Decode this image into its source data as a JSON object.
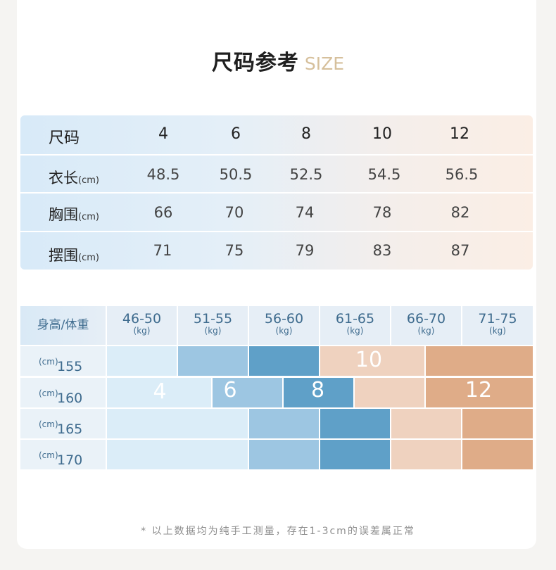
{
  "title": {
    "cn": "尺码参考",
    "en": "SIZE"
  },
  "size_table": {
    "header": {
      "label": "尺码",
      "values": [
        "4",
        "6",
        "8",
        "10",
        "12"
      ]
    },
    "rows": [
      {
        "label": "衣长",
        "unit": "(cm)",
        "values": [
          "48.5",
          "50.5",
          "52.5",
          "54.5",
          "56.5"
        ]
      },
      {
        "label": "胸围",
        "unit": "(cm)",
        "values": [
          "66",
          "70",
          "74",
          "78",
          "82"
        ]
      },
      {
        "label": "摆围",
        "unit": "(cm)",
        "values": [
          "71",
          "75",
          "79",
          "83",
          "87"
        ]
      }
    ]
  },
  "fit_table": {
    "corner": "身高/体重",
    "weights": [
      {
        "range": "46-50",
        "unit": "(kg)"
      },
      {
        "range": "51-55",
        "unit": "(kg)"
      },
      {
        "range": "56-60",
        "unit": "(kg)"
      },
      {
        "range": "61-65",
        "unit": "(kg)"
      },
      {
        "range": "66-70",
        "unit": "(kg)"
      },
      {
        "range": "71-75",
        "unit": "(kg)"
      }
    ],
    "heights": [
      {
        "value": "155",
        "unit": "(cm)"
      },
      {
        "value": "160",
        "unit": "(cm)"
      },
      {
        "value": "165",
        "unit": "(cm)"
      },
      {
        "value": "170",
        "unit": "(cm)"
      }
    ],
    "size_labels": [
      "4",
      "6",
      "8",
      "10",
      "12"
    ],
    "colors": {
      "size_4": "#dbedf8",
      "size_6": "#9dc6e2",
      "size_8": "#5fa0c8",
      "size_10": "#efd2bf",
      "size_12": "#dfac88"
    }
  },
  "note": "* 以上数据均为纯手工测量，存在1-3cm的误差属正常"
}
